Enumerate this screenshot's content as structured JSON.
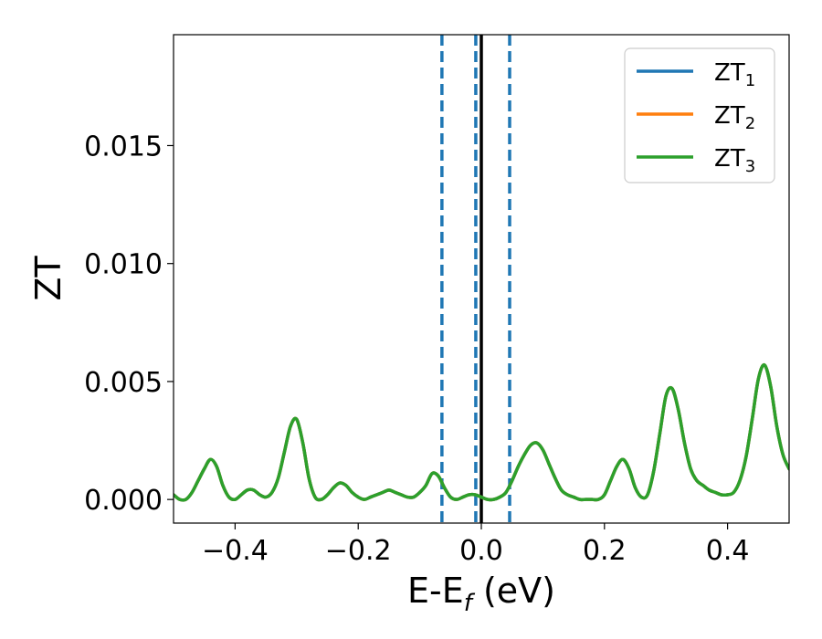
{
  "chart_data": {
    "type": "line",
    "title": "",
    "xlabel": "E-E",
    "xlabel_sub": "f",
    "xlabel_unit": " (eV)",
    "ylabel": "ZT",
    "xlim": [
      -0.5,
      0.5
    ],
    "ylim": [
      -0.001,
      0.0197
    ],
    "x_ticks": [
      -0.4,
      -0.2,
      0.0,
      0.2,
      0.4
    ],
    "x_tick_labels": [
      "−0.4",
      "−0.2",
      "0.0",
      "0.2",
      "0.4"
    ],
    "y_ticks": [
      0.0,
      0.005,
      0.01,
      0.015
    ],
    "y_tick_labels": [
      "0.000",
      "0.005",
      "0.010",
      "0.015"
    ],
    "grid": false,
    "legend_position": "top-right",
    "vertical_lines": [
      {
        "x": -0.064,
        "style": "dashed",
        "color": "#1f77b4"
      },
      {
        "x": -0.009,
        "style": "dashed",
        "color": "#1f77b4"
      },
      {
        "x": 0.046,
        "style": "dashed",
        "color": "#1f77b4"
      },
      {
        "x": 0.0,
        "style": "solid",
        "color": "#000000"
      }
    ],
    "x": [
      -0.5,
      -0.49,
      -0.48,
      -0.47,
      -0.46,
      -0.45,
      -0.44,
      -0.43,
      -0.42,
      -0.41,
      -0.4,
      -0.39,
      -0.38,
      -0.37,
      -0.36,
      -0.35,
      -0.34,
      -0.33,
      -0.32,
      -0.31,
      -0.3,
      -0.29,
      -0.28,
      -0.27,
      -0.26,
      -0.25,
      -0.24,
      -0.23,
      -0.22,
      -0.21,
      -0.2,
      -0.19,
      -0.18,
      -0.17,
      -0.16,
      -0.15,
      -0.14,
      -0.13,
      -0.12,
      -0.11,
      -0.1,
      -0.09,
      -0.08,
      -0.07,
      -0.06,
      -0.05,
      -0.04,
      -0.03,
      -0.02,
      -0.01,
      0.0,
      0.01,
      0.02,
      0.03,
      0.04,
      0.05,
      0.06,
      0.07,
      0.08,
      0.09,
      0.1,
      0.11,
      0.12,
      0.13,
      0.14,
      0.15,
      0.16,
      0.17,
      0.18,
      0.19,
      0.2,
      0.21,
      0.22,
      0.23,
      0.24,
      0.25,
      0.26,
      0.27,
      0.28,
      0.29,
      0.3,
      0.31,
      0.32,
      0.33,
      0.34,
      0.35,
      0.36,
      0.37,
      0.38,
      0.39,
      0.4,
      0.41,
      0.42,
      0.43,
      0.44,
      0.45,
      0.46,
      0.47,
      0.48,
      0.49,
      0.5
    ],
    "series": [
      {
        "name": "ZT1",
        "label_main": "ZT",
        "label_sub": "1",
        "color": "#1f77b4",
        "values": [
          0.0002,
          0.0,
          0.0,
          0.0003,
          0.0008,
          0.0013,
          0.0017,
          0.0014,
          0.0006,
          0.0001,
          0.0,
          0.0002,
          0.0004,
          0.0004,
          0.0002,
          0.0001,
          0.0003,
          0.0009,
          0.002,
          0.0031,
          0.0034,
          0.0024,
          0.0009,
          0.0001,
          0.0,
          0.0002,
          0.0005,
          0.0007,
          0.0006,
          0.0003,
          0.0001,
          0.0,
          0.0001,
          0.0002,
          0.0003,
          0.0004,
          0.0003,
          0.0002,
          0.0001,
          0.0001,
          0.0003,
          0.0006,
          0.0011,
          0.001,
          0.0005,
          0.0001,
          0.0,
          0.0001,
          0.0002,
          0.0002,
          0.0001,
          0.0,
          0.0,
          0.0001,
          0.0003,
          0.0008,
          0.0014,
          0.0019,
          0.0023,
          0.0024,
          0.0021,
          0.0015,
          0.0009,
          0.0004,
          0.0002,
          0.0001,
          0.0,
          0.0,
          0.0,
          0.0,
          0.0002,
          0.0008,
          0.0014,
          0.0017,
          0.0013,
          0.0005,
          0.0001,
          0.0002,
          0.0012,
          0.0028,
          0.0044,
          0.0047,
          0.0038,
          0.0024,
          0.0013,
          0.0008,
          0.0006,
          0.0004,
          0.0003,
          0.0002,
          0.0002,
          0.0003,
          0.0008,
          0.0018,
          0.0034,
          0.0051,
          0.0057,
          0.0048,
          0.0031,
          0.0019,
          0.0013
        ]
      },
      {
        "name": "ZT2",
        "label_main": "ZT",
        "label_sub": "2",
        "color": "#ff7f0e",
        "values": [
          0.0002,
          0.0,
          0.0,
          0.0003,
          0.0008,
          0.0013,
          0.0017,
          0.0014,
          0.0006,
          0.0001,
          0.0,
          0.0002,
          0.0004,
          0.0004,
          0.0002,
          0.0001,
          0.0003,
          0.0009,
          0.002,
          0.0031,
          0.0034,
          0.0024,
          0.0009,
          0.0001,
          0.0,
          0.0002,
          0.0005,
          0.0007,
          0.0006,
          0.0003,
          0.0001,
          0.0,
          0.0001,
          0.0002,
          0.0003,
          0.0004,
          0.0003,
          0.0002,
          0.0001,
          0.0001,
          0.0003,
          0.0006,
          0.0011,
          0.001,
          0.0005,
          0.0001,
          0.0,
          0.0001,
          0.0002,
          0.0002,
          0.0001,
          0.0,
          0.0,
          0.0001,
          0.0003,
          0.0008,
          0.0014,
          0.0019,
          0.0023,
          0.0024,
          0.0021,
          0.0015,
          0.0009,
          0.0004,
          0.0002,
          0.0001,
          0.0,
          0.0,
          0.0,
          0.0,
          0.0002,
          0.0008,
          0.0014,
          0.0017,
          0.0013,
          0.0005,
          0.0001,
          0.0002,
          0.0012,
          0.0028,
          0.0044,
          0.0047,
          0.0038,
          0.0024,
          0.0013,
          0.0008,
          0.0006,
          0.0004,
          0.0003,
          0.0002,
          0.0002,
          0.0003,
          0.0008,
          0.0018,
          0.0034,
          0.0051,
          0.0057,
          0.0048,
          0.0031,
          0.0019,
          0.0013
        ]
      },
      {
        "name": "ZT3",
        "label_main": "ZT",
        "label_sub": "3",
        "color": "#2ca02c",
        "values": [
          0.0002,
          0.0,
          0.0,
          0.0003,
          0.0008,
          0.0013,
          0.0017,
          0.0014,
          0.0006,
          0.0001,
          0.0,
          0.0002,
          0.0004,
          0.0004,
          0.0002,
          0.0001,
          0.0003,
          0.0009,
          0.002,
          0.0031,
          0.0034,
          0.0024,
          0.0009,
          0.0001,
          0.0,
          0.0002,
          0.0005,
          0.0007,
          0.0006,
          0.0003,
          0.0001,
          0.0,
          0.0001,
          0.0002,
          0.0003,
          0.0004,
          0.0003,
          0.0002,
          0.0001,
          0.0001,
          0.0003,
          0.0006,
          0.0011,
          0.001,
          0.0005,
          0.0001,
          0.0,
          0.0001,
          0.0002,
          0.0002,
          0.0001,
          0.0,
          0.0,
          0.0001,
          0.0003,
          0.0008,
          0.0014,
          0.0019,
          0.0023,
          0.0024,
          0.0021,
          0.0015,
          0.0009,
          0.0004,
          0.0002,
          0.0001,
          0.0,
          0.0,
          0.0,
          0.0,
          0.0002,
          0.0008,
          0.0014,
          0.0017,
          0.0013,
          0.0005,
          0.0001,
          0.0002,
          0.0012,
          0.0028,
          0.0044,
          0.0047,
          0.0038,
          0.0024,
          0.0013,
          0.0008,
          0.0006,
          0.0004,
          0.0003,
          0.0002,
          0.0002,
          0.0003,
          0.0008,
          0.0018,
          0.0034,
          0.0051,
          0.0057,
          0.0048,
          0.0031,
          0.0019,
          0.0013
        ]
      }
    ]
  }
}
